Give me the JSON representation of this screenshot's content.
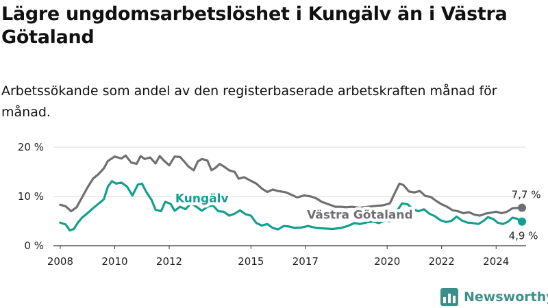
{
  "title": "Lägre ungdomsarbetslöshet i Kungälv än i Västra Götaland",
  "subtitle": "Arbetssökande som andel av den registerbaserade arbetskraften månad för månad.",
  "brand": "Newsworthy",
  "colors": {
    "kungalv": "#12a08e",
    "vg": "#6f6e73",
    "grid": "#d9d9d9",
    "axis": "#333333"
  },
  "chart_data": {
    "type": "line",
    "xlabel": "",
    "ylabel": "",
    "xlim": [
      2007.75,
      2025.1
    ],
    "ylim": [
      0,
      20
    ],
    "x_ticks": [
      2008,
      2010,
      2012,
      2015,
      2017,
      2020,
      2022,
      2024
    ],
    "x_tick_labels": [
      "2008",
      "2010",
      "2012",
      "2015",
      "2017",
      "2020",
      "2022",
      "2024"
    ],
    "y_ticks": [
      0,
      10,
      20
    ],
    "y_tick_labels": [
      "0 %",
      "10 %",
      "20 %"
    ],
    "grid": true,
    "series": [
      {
        "name": "Västra Götaland",
        "end_label": "7,7 %",
        "points": [
          [
            2008.0,
            8.3
          ],
          [
            2008.2,
            8.0
          ],
          [
            2008.4,
            7.0
          ],
          [
            2008.6,
            7.8
          ],
          [
            2008.8,
            9.8
          ],
          [
            2009.0,
            11.8
          ],
          [
            2009.2,
            13.6
          ],
          [
            2009.4,
            14.5
          ],
          [
            2009.6,
            15.7
          ],
          [
            2009.75,
            17.2
          ],
          [
            2010.0,
            18.1
          ],
          [
            2010.25,
            17.7
          ],
          [
            2010.4,
            18.3
          ],
          [
            2010.6,
            16.9
          ],
          [
            2010.8,
            16.6
          ],
          [
            2010.95,
            18.2
          ],
          [
            2011.1,
            17.6
          ],
          [
            2011.3,
            17.9
          ],
          [
            2011.5,
            16.7
          ],
          [
            2011.65,
            18.2
          ],
          [
            2011.8,
            17.3
          ],
          [
            2012.0,
            16.3
          ],
          [
            2012.2,
            18.1
          ],
          [
            2012.4,
            18.0
          ],
          [
            2012.55,
            17.1
          ],
          [
            2012.7,
            16.1
          ],
          [
            2012.9,
            15.3
          ],
          [
            2013.05,
            17.1
          ],
          [
            2013.2,
            17.6
          ],
          [
            2013.4,
            17.3
          ],
          [
            2013.55,
            15.3
          ],
          [
            2013.7,
            15.8
          ],
          [
            2013.85,
            16.6
          ],
          [
            2014.0,
            16.1
          ],
          [
            2014.2,
            15.3
          ],
          [
            2014.4,
            15.0
          ],
          [
            2014.55,
            13.6
          ],
          [
            2014.75,
            13.9
          ],
          [
            2014.95,
            13.3
          ],
          [
            2015.2,
            12.6
          ],
          [
            2015.4,
            11.6
          ],
          [
            2015.6,
            10.9
          ],
          [
            2015.8,
            11.4
          ],
          [
            2016.0,
            11.1
          ],
          [
            2016.3,
            10.8
          ],
          [
            2016.5,
            10.3
          ],
          [
            2016.7,
            9.8
          ],
          [
            2016.95,
            10.2
          ],
          [
            2017.2,
            10.0
          ],
          [
            2017.4,
            9.6
          ],
          [
            2017.6,
            8.9
          ],
          [
            2017.85,
            8.4
          ],
          [
            2018.1,
            7.9
          ],
          [
            2018.3,
            7.9
          ],
          [
            2018.5,
            7.8
          ],
          [
            2018.7,
            7.9
          ],
          [
            2019.0,
            7.7
          ],
          [
            2019.3,
            7.9
          ],
          [
            2019.6,
            8.1
          ],
          [
            2019.85,
            8.2
          ],
          [
            2020.1,
            8.6
          ],
          [
            2020.3,
            10.9
          ],
          [
            2020.45,
            12.6
          ],
          [
            2020.6,
            12.3
          ],
          [
            2020.8,
            11.0
          ],
          [
            2021.0,
            10.8
          ],
          [
            2021.2,
            11.1
          ],
          [
            2021.4,
            10.1
          ],
          [
            2021.6,
            9.9
          ],
          [
            2021.8,
            9.1
          ],
          [
            2022.0,
            8.4
          ],
          [
            2022.2,
            7.9
          ],
          [
            2022.4,
            7.2
          ],
          [
            2022.6,
            7.0
          ],
          [
            2022.8,
            6.6
          ],
          [
            2023.0,
            6.8
          ],
          [
            2023.2,
            6.3
          ],
          [
            2023.4,
            6.1
          ],
          [
            2023.6,
            6.5
          ],
          [
            2023.8,
            6.7
          ],
          [
            2024.0,
            6.9
          ],
          [
            2024.2,
            6.6
          ],
          [
            2024.4,
            6.9
          ],
          [
            2024.6,
            7.6
          ],
          [
            2024.8,
            7.7
          ],
          [
            2024.95,
            7.7
          ]
        ]
      },
      {
        "name": "Kungälv",
        "end_label": "4,9 %",
        "points": [
          [
            2008.0,
            4.7
          ],
          [
            2008.2,
            4.3
          ],
          [
            2008.35,
            3.1
          ],
          [
            2008.5,
            3.4
          ],
          [
            2008.65,
            4.7
          ],
          [
            2008.8,
            5.7
          ],
          [
            2009.0,
            6.6
          ],
          [
            2009.2,
            7.6
          ],
          [
            2009.4,
            8.5
          ],
          [
            2009.6,
            9.4
          ],
          [
            2009.75,
            12.0
          ],
          [
            2009.9,
            13.1
          ],
          [
            2010.05,
            12.6
          ],
          [
            2010.25,
            12.8
          ],
          [
            2010.45,
            12.0
          ],
          [
            2010.65,
            10.2
          ],
          [
            2010.85,
            12.4
          ],
          [
            2011.0,
            12.6
          ],
          [
            2011.15,
            11.0
          ],
          [
            2011.35,
            9.3
          ],
          [
            2011.5,
            7.3
          ],
          [
            2011.7,
            7.0
          ],
          [
            2011.85,
            8.9
          ],
          [
            2012.05,
            8.5
          ],
          [
            2012.2,
            7.1
          ],
          [
            2012.4,
            7.9
          ],
          [
            2012.6,
            7.4
          ],
          [
            2012.8,
            8.6
          ],
          [
            2013.0,
            7.9
          ],
          [
            2013.2,
            7.1
          ],
          [
            2013.4,
            7.9
          ],
          [
            2013.6,
            8.2
          ],
          [
            2013.8,
            7.0
          ],
          [
            2014.0,
            6.9
          ],
          [
            2014.2,
            6.1
          ],
          [
            2014.4,
            6.5
          ],
          [
            2014.6,
            7.2
          ],
          [
            2014.8,
            6.4
          ],
          [
            2015.0,
            6.1
          ],
          [
            2015.2,
            4.6
          ],
          [
            2015.4,
            4.1
          ],
          [
            2015.6,
            4.4
          ],
          [
            2015.8,
            3.6
          ],
          [
            2016.0,
            3.3
          ],
          [
            2016.2,
            4.0
          ],
          [
            2016.4,
            3.9
          ],
          [
            2016.6,
            3.6
          ],
          [
            2016.85,
            3.7
          ],
          [
            2017.1,
            4.0
          ],
          [
            2017.4,
            3.6
          ],
          [
            2017.7,
            3.5
          ],
          [
            2018.0,
            3.4
          ],
          [
            2018.3,
            3.6
          ],
          [
            2018.55,
            4.0
          ],
          [
            2018.8,
            4.6
          ],
          [
            2019.0,
            4.4
          ],
          [
            2019.3,
            4.8
          ],
          [
            2019.5,
            4.9
          ],
          [
            2019.7,
            4.6
          ],
          [
            2019.9,
            5.1
          ],
          [
            2020.1,
            5.0
          ],
          [
            2020.35,
            7.0
          ],
          [
            2020.55,
            8.6
          ],
          [
            2020.75,
            8.4
          ],
          [
            2020.95,
            7.4
          ],
          [
            2021.15,
            7.0
          ],
          [
            2021.35,
            7.4
          ],
          [
            2021.55,
            6.5
          ],
          [
            2021.75,
            6.0
          ],
          [
            2021.95,
            5.2
          ],
          [
            2022.15,
            4.8
          ],
          [
            2022.35,
            5.0
          ],
          [
            2022.55,
            5.9
          ],
          [
            2022.75,
            5.1
          ],
          [
            2022.95,
            4.7
          ],
          [
            2023.15,
            4.6
          ],
          [
            2023.35,
            4.4
          ],
          [
            2023.55,
            5.1
          ],
          [
            2023.7,
            5.8
          ],
          [
            2023.9,
            5.4
          ],
          [
            2024.05,
            4.7
          ],
          [
            2024.25,
            4.4
          ],
          [
            2024.45,
            4.9
          ],
          [
            2024.6,
            5.7
          ],
          [
            2024.75,
            5.5
          ],
          [
            2024.95,
            4.9
          ]
        ]
      }
    ]
  }
}
